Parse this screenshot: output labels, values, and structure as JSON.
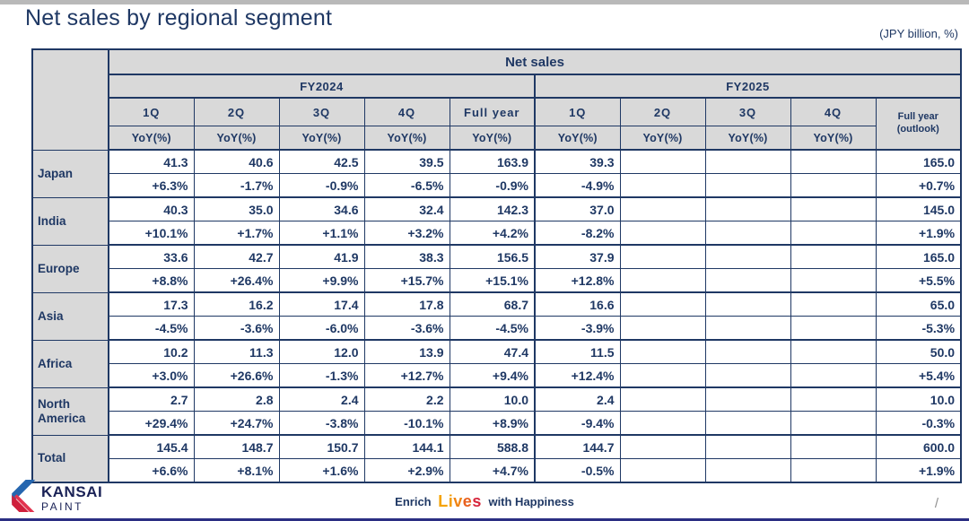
{
  "slide": {
    "title": "Net sales by regional segment",
    "unit_note": "(JPY billion, %)",
    "page_indicator": "/"
  },
  "table": {
    "main_header": "Net sales",
    "fy_groups": [
      {
        "label": "FY2024"
      },
      {
        "label": "FY2025"
      }
    ],
    "quarter_columns": [
      "1Q",
      "2Q",
      "3Q",
      "4Q",
      "Full year",
      "1Q",
      "2Q",
      "3Q",
      "4Q"
    ],
    "outlook_header_line1": "Full year",
    "outlook_header_line2": "(outlook)",
    "yoy_label": "YoY(%)",
    "rows": [
      {
        "region": "Japan",
        "values": [
          "41.3",
          "40.6",
          "42.5",
          "39.5",
          "163.9",
          "39.3",
          "",
          "",
          "",
          "165.0"
        ],
        "yoy": [
          "+6.3%",
          "-1.7%",
          "-0.9%",
          "-6.5%",
          "-0.9%",
          "-4.9%",
          "",
          "",
          "",
          "+0.7%"
        ]
      },
      {
        "region": "India",
        "values": [
          "40.3",
          "35.0",
          "34.6",
          "32.4",
          "142.3",
          "37.0",
          "",
          "",
          "",
          "145.0"
        ],
        "yoy": [
          "+10.1%",
          "+1.7%",
          "+1.1%",
          "+3.2%",
          "+4.2%",
          "-8.2%",
          "",
          "",
          "",
          "+1.9%"
        ]
      },
      {
        "region": "Europe",
        "values": [
          "33.6",
          "42.7",
          "41.9",
          "38.3",
          "156.5",
          "37.9",
          "",
          "",
          "",
          "165.0"
        ],
        "yoy": [
          "+8.8%",
          "+26.4%",
          "+9.9%",
          "+15.7%",
          "+15.1%",
          "+12.8%",
          "",
          "",
          "",
          "+5.5%"
        ]
      },
      {
        "region": "Asia",
        "values": [
          "17.3",
          "16.2",
          "17.4",
          "17.8",
          "68.7",
          "16.6",
          "",
          "",
          "",
          "65.0"
        ],
        "yoy": [
          "-4.5%",
          "-3.6%",
          "-6.0%",
          "-3.6%",
          "-4.5%",
          "-3.9%",
          "",
          "",
          "",
          "-5.3%"
        ]
      },
      {
        "region": "Africa",
        "values": [
          "10.2",
          "11.3",
          "12.0",
          "13.9",
          "47.4",
          "11.5",
          "",
          "",
          "",
          "50.0"
        ],
        "yoy": [
          "+3.0%",
          "+26.6%",
          "-1.3%",
          "+12.7%",
          "+9.4%",
          "+12.4%",
          "",
          "",
          "",
          "+5.4%"
        ]
      },
      {
        "region": "North America",
        "values": [
          "2.7",
          "2.8",
          "2.4",
          "2.2",
          "10.0",
          "2.4",
          "",
          "",
          "",
          "10.0"
        ],
        "yoy": [
          "+29.4%",
          "+24.7%",
          "-3.8%",
          "-10.1%",
          "+8.9%",
          "-9.4%",
          "",
          "",
          "",
          "-0.3%"
        ]
      },
      {
        "region": "Total",
        "values": [
          "145.4",
          "148.7",
          "150.7",
          "144.1",
          "588.8",
          "144.7",
          "",
          "",
          "",
          "600.0"
        ],
        "yoy": [
          "+6.6%",
          "+8.1%",
          "+1.6%",
          "+2.9%",
          "+4.7%",
          "-0.5%",
          "",
          "",
          "",
          "+1.9%"
        ]
      }
    ]
  },
  "footer": {
    "brand": "KANSAI",
    "brand_sub": "PAINT",
    "tagline": {
      "part1": "Enrich",
      "part2": "Lives",
      "part3": "with Happiness"
    },
    "lives_letter_colors": [
      "#F5A300",
      "#F39C00",
      "#EF8312",
      "#E8601E",
      "#D7263D"
    ]
  },
  "colors": {
    "navy": "#1f3864",
    "header_bg": "#d9d9d9",
    "logo_blue": "#2566af",
    "logo_red": "#cf1f3c",
    "bottom_bar": "#2b2e83"
  }
}
